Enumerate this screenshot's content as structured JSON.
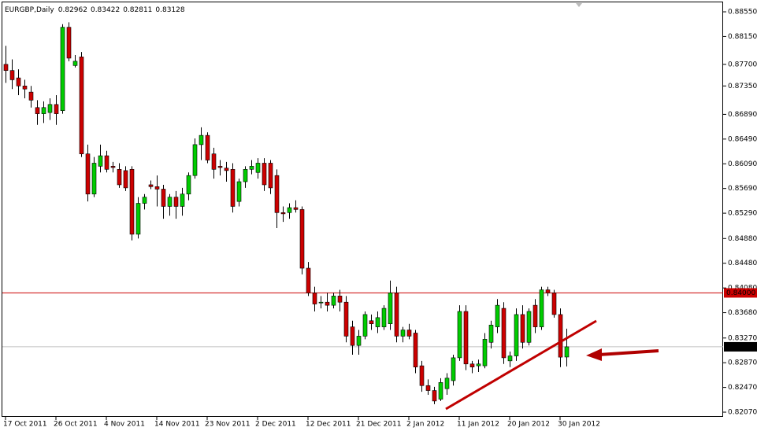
{
  "chart_data": {
    "type": "candlestick",
    "title": "EURGBP,Daily",
    "categories": [
      "17 Oct 2011",
      null,
      null,
      null,
      null,
      null,
      null,
      null,
      "26 Oct 2011",
      null,
      null,
      null,
      null,
      null,
      null,
      null,
      "4 Nov 2011",
      null,
      null,
      null,
      null,
      null,
      null,
      null,
      "14 Nov 2011",
      null,
      null,
      null,
      null,
      null,
      null,
      null,
      "23 Nov 2011",
      null,
      null,
      null,
      null,
      null,
      null,
      null,
      "2 Dec 2011",
      null,
      null,
      null,
      null,
      null,
      null,
      null,
      "12 Dec 2011",
      null,
      null,
      null,
      null,
      null,
      null,
      null,
      "21 Dec 2011",
      null,
      null,
      null,
      null,
      null,
      null,
      null,
      "2 Jan 2012",
      null,
      null,
      null,
      null,
      null,
      null,
      null,
      "11 Jan 2012",
      null,
      null,
      null,
      null,
      null,
      null,
      null,
      "20 Jan 2012",
      null,
      null,
      null,
      null,
      null,
      null,
      null,
      "30 Jan 2012",
      null
    ],
    "open": [
      0.877,
      0.876,
      0.8748,
      0.8735,
      0.8725,
      0.87,
      0.869,
      0.8692,
      0.8705,
      0.8695,
      0.883,
      0.8768,
      0.8782,
      0.8625,
      0.856,
      0.8605,
      0.8622,
      0.8605,
      0.86,
      0.8598,
      0.86,
      0.8495,
      0.8545,
      0.8575,
      0.8572,
      0.8568,
      0.854,
      0.8555,
      0.854,
      0.856,
      0.859,
      0.864,
      0.8655,
      0.8625,
      0.8605,
      0.8602,
      0.86,
      0.8548,
      0.858,
      0.86,
      0.8595,
      0.861,
      0.861,
      0.859,
      0.853,
      0.853,
      0.8538,
      0.8535,
      0.844,
      0.84,
      0.8385,
      0.8385,
      0.838,
      0.8395,
      0.8385,
      0.8345,
      0.8315,
      0.833,
      0.8355,
      0.8345,
      0.8345,
      0.835,
      0.84,
      0.833,
      0.834,
      0.8335,
      0.8282,
      0.825,
      0.8242,
      0.8228,
      0.8245,
      0.8258,
      0.8295,
      0.837,
      0.8285,
      0.8282,
      0.8282,
      0.832,
      0.8345,
      0.8375,
      0.829,
      0.8298,
      0.8365,
      0.832,
      0.838,
      0.8345,
      0.8405,
      0.84,
      0.8365,
      0.82962
    ],
    "high": [
      0.88,
      0.8778,
      0.8762,
      0.8745,
      0.8735,
      0.8712,
      0.871,
      0.8715,
      0.872,
      0.8835,
      0.8838,
      0.8785,
      0.879,
      0.864,
      0.862,
      0.864,
      0.863,
      0.8612,
      0.861,
      0.8605,
      0.8605,
      0.8555,
      0.856,
      0.8582,
      0.859,
      0.8575,
      0.856,
      0.8565,
      0.857,
      0.8595,
      0.865,
      0.8668,
      0.866,
      0.8635,
      0.8615,
      0.8612,
      0.861,
      0.8585,
      0.8605,
      0.8615,
      0.8618,
      0.8618,
      0.8615,
      0.86,
      0.854,
      0.8545,
      0.855,
      0.854,
      0.845,
      0.841,
      0.8395,
      0.84,
      0.84,
      0.8405,
      0.8395,
      0.8355,
      0.834,
      0.837,
      0.8365,
      0.837,
      0.838,
      0.842,
      0.841,
      0.8345,
      0.835,
      0.834,
      0.829,
      0.826,
      0.8248,
      0.8262,
      0.827,
      0.83,
      0.838,
      0.838,
      0.829,
      0.8292,
      0.8335,
      0.8355,
      0.839,
      0.8385,
      0.8305,
      0.8375,
      0.838,
      0.8375,
      0.839,
      0.841,
      0.841,
      0.8405,
      0.8375,
      0.83422
    ],
    "low": [
      0.874,
      0.873,
      0.872,
      0.8715,
      0.87,
      0.8672,
      0.8675,
      0.868,
      0.8672,
      0.869,
      0.8775,
      0.8765,
      0.862,
      0.8548,
      0.8555,
      0.8595,
      0.8595,
      0.8595,
      0.857,
      0.8565,
      0.8485,
      0.8488,
      0.8535,
      0.8568,
      0.854,
      0.852,
      0.8525,
      0.852,
      0.8525,
      0.855,
      0.8585,
      0.8615,
      0.861,
      0.8585,
      0.859,
      0.858,
      0.853,
      0.854,
      0.857,
      0.8592,
      0.8585,
      0.8565,
      0.856,
      0.8505,
      0.8515,
      0.852,
      0.853,
      0.843,
      0.8395,
      0.837,
      0.8375,
      0.837,
      0.8375,
      0.837,
      0.832,
      0.83,
      0.83,
      0.8325,
      0.834,
      0.8335,
      0.834,
      0.834,
      0.832,
      0.832,
      0.8325,
      0.827,
      0.824,
      0.8235,
      0.822,
      0.8225,
      0.8235,
      0.825,
      0.829,
      0.8275,
      0.827,
      0.8272,
      0.8278,
      0.831,
      0.8335,
      0.8285,
      0.828,
      0.829,
      0.831,
      0.8315,
      0.8335,
      0.834,
      0.8395,
      0.836,
      0.828,
      0.82811
    ],
    "close": [
      0.876,
      0.8745,
      0.8735,
      0.873,
      0.8712,
      0.869,
      0.87,
      0.8705,
      0.869,
      0.883,
      0.878,
      0.8775,
      0.8625,
      0.856,
      0.861,
      0.8622,
      0.86,
      0.8603,
      0.8575,
      0.857,
      0.8495,
      0.8545,
      0.8555,
      0.8572,
      0.8568,
      0.854,
      0.8555,
      0.854,
      0.856,
      0.859,
      0.864,
      0.8655,
      0.8615,
      0.86,
      0.8603,
      0.8598,
      0.854,
      0.858,
      0.86,
      0.8605,
      0.861,
      0.8575,
      0.857,
      0.853,
      0.8528,
      0.8538,
      0.8535,
      0.844,
      0.84,
      0.8382,
      0.8385,
      0.838,
      0.8395,
      0.8385,
      0.833,
      0.8315,
      0.833,
      0.8365,
      0.835,
      0.836,
      0.8375,
      0.84,
      0.833,
      0.834,
      0.833,
      0.828,
      0.825,
      0.8242,
      0.8225,
      0.8255,
      0.8262,
      0.8295,
      0.837,
      0.8285,
      0.828,
      0.8285,
      0.8325,
      0.8348,
      0.838,
      0.8295,
      0.8298,
      0.8365,
      0.832,
      0.837,
      0.8345,
      0.8405,
      0.84,
      0.8365,
      0.8296,
      0.83128
    ],
    "up_color": "#00cc00",
    "down_color": "#cc0000",
    "ylim": [
      0.81994,
      0.88703
    ],
    "yticks": [
      {
        "value": 0.8207,
        "label": "0.82070"
      },
      {
        "value": 0.8247,
        "label": "0.82470"
      },
      {
        "value": 0.8287,
        "label": "0.82870"
      },
      {
        "value": 0.8327,
        "label": "0.83270"
      },
      {
        "value": 0.8368,
        "label": "0.83680"
      },
      {
        "value": 0.8408,
        "label": "0.84080"
      },
      {
        "value": 0.8448,
        "label": "0.84480"
      },
      {
        "value": 0.8488,
        "label": "0.84880"
      },
      {
        "value": 0.8529,
        "label": "0.85290"
      },
      {
        "value": 0.8569,
        "label": "0.85690"
      },
      {
        "value": 0.8609,
        "label": "0.86090"
      },
      {
        "value": 0.8649,
        "label": "0.86490"
      },
      {
        "value": 0.8689,
        "label": "0.86890"
      },
      {
        "value": 0.8735,
        "label": "0.87350"
      },
      {
        "value": 0.877,
        "label": "0.87700"
      },
      {
        "value": 0.8815,
        "label": "0.88150"
      },
      {
        "value": 0.8855,
        "label": "0.88550"
      }
    ],
    "hlines": [
      {
        "value": 0.84,
        "label": "0.84000",
        "color": "#cc0000"
      },
      {
        "value": 0.83128,
        "label": "0.83128",
        "color": "#000000"
      }
    ],
    "grid": false
  }
}
